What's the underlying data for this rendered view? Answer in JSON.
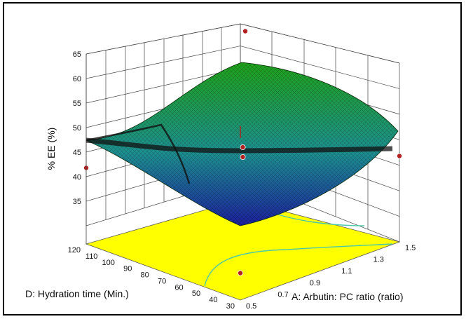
{
  "chart_data": {
    "type": "surface3d",
    "zlabel": "% EE (%)",
    "xlabel": "A: Arbutin: PC ratio (ratio)",
    "ylabel": "D: Hydration time  (Min.)",
    "z_ticks": [
      "35",
      "40",
      "45",
      "50",
      "55",
      "60",
      "65"
    ],
    "x_ticks": [
      "0.5",
      "0.7",
      "0.9",
      "1.1",
      "1.3",
      "1.5"
    ],
    "y_ticks": [
      "30",
      "40",
      "50",
      "60",
      "70",
      "80",
      "90",
      "100",
      "110",
      "120"
    ],
    "zlim": [
      30,
      65
    ],
    "xlim": [
      0.5,
      1.5
    ],
    "ylim": [
      30,
      120
    ],
    "corners": [
      {
        "A": 0.5,
        "D": 120,
        "EE": 45.5
      },
      {
        "A": 0.5,
        "D": 30,
        "EE": 35.5
      },
      {
        "A": 1.5,
        "D": 30,
        "EE": 47.5
      },
      {
        "A": 1.5,
        "D": 120,
        "EE": 61.5
      }
    ],
    "design_points": [
      {
        "A": 1.0,
        "D": 75,
        "EE": 49.5
      },
      {
        "A": 1.0,
        "D": 75,
        "EE": 47.5
      }
    ],
    "floor_contour_color": "#ffff00",
    "colors": {
      "low": "#1b1f9c",
      "mid": "#1d8f8f",
      "high": "#1fa01a",
      "contour": "#4cc9a8",
      "point": "#b22222"
    }
  }
}
